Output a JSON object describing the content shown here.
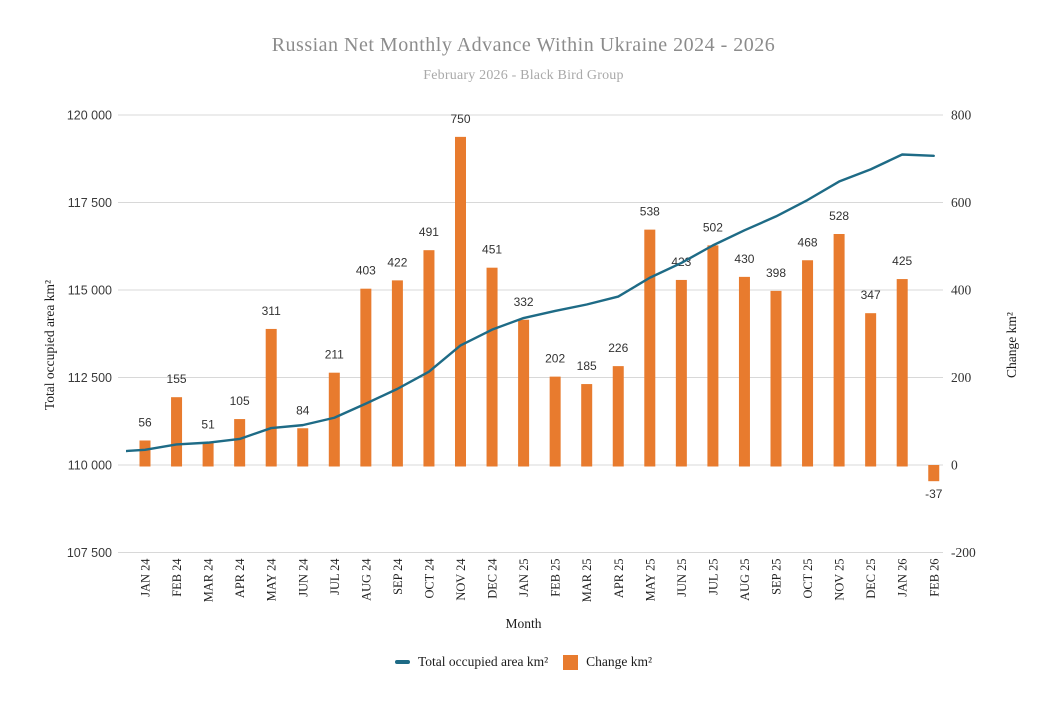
{
  "chart_data": {
    "type": "combo-line-bar",
    "title": "Russian Net Monthly Advance Within Ukraine 2024 - 2026",
    "subtitle": "February 2026 - Black Bird Group",
    "x_axis": {
      "title": "Month",
      "categories": [
        "JAN 24",
        "FEB 24",
        "MAR 24",
        "APR 24",
        "MAY 24",
        "JUN 24",
        "JUL 24",
        "AUG 24",
        "SEP 24",
        "OCT 24",
        "NOV 24",
        "DEC 24",
        "JAN 25",
        "FEB 25",
        "MAR 25",
        "APR 25",
        "MAY 25",
        "JUN 25",
        "JUL 25",
        "AUG 25",
        "SEP 25",
        "OCT 25",
        "NOV 25",
        "DEC 25",
        "JAN 26",
        "FEB 26"
      ]
    },
    "left_axis": {
      "title": "Total occupied area km²",
      "range": [
        107500,
        120000
      ],
      "tick_labels": [
        "120 000",
        "117 500",
        "115 000",
        "112 500",
        "110 000",
        "107 500"
      ],
      "tick_values": [
        120000,
        117500,
        115000,
        112500,
        110000,
        107500
      ]
    },
    "right_axis": {
      "title": "Change km²",
      "range": [
        -200,
        800
      ],
      "tick_labels": [
        "800",
        "600",
        "400",
        "200",
        "0",
        "-200"
      ],
      "tick_values": [
        800,
        600,
        400,
        200,
        0,
        -200
      ]
    },
    "series": [
      {
        "name": "Total occupied area km²",
        "type": "line",
        "axis": "left",
        "color": "#1e6b86",
        "edge_start_value": 110399,
        "values": [
          110433,
          110588,
          110639,
          110744,
          111055,
          111139,
          111350,
          111753,
          112175,
          112666,
          113416,
          113867,
          114199,
          114401,
          114586,
          114812,
          115350,
          115773,
          116275,
          116705,
          117103,
          117571,
          118099,
          118446,
          118871,
          118834
        ]
      },
      {
        "name": "Change km²",
        "type": "bar",
        "axis": "right",
        "color": "#e87b2e",
        "value_labels_shown": true,
        "values": [
          56,
          155,
          51,
          105,
          311,
          84,
          211,
          403,
          422,
          491,
          750,
          451,
          332,
          202,
          185,
          226,
          538,
          423,
          502,
          430,
          398,
          468,
          528,
          347,
          425,
          -37
        ]
      }
    ],
    "grid": true,
    "legend_position": "bottom"
  },
  "legend": [
    {
      "label": "Total occupied area km²",
      "swatch": "line",
      "color": "#1e6b86"
    },
    {
      "label": "Change km²",
      "swatch": "square",
      "color": "#e87b2e"
    }
  ],
  "colors": {
    "line": "#1e6b86",
    "bar": "#e87b2e",
    "title": "#8c8c8c",
    "subtitle": "#a9a9a9",
    "grid": "#d8d8d8",
    "left_tick_text": "#3a3a3a",
    "right_tick_text": "#333333",
    "bar_label_text": "#333333",
    "x_tick_text": "#1f1f1f"
  }
}
